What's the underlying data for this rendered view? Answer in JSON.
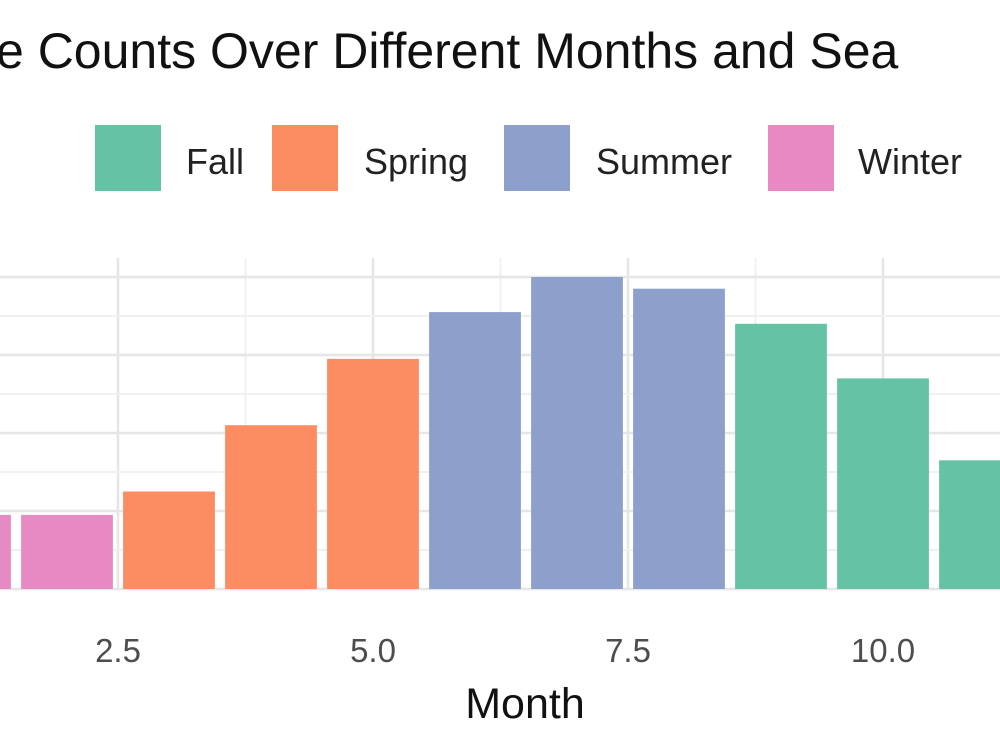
{
  "chart_data": {
    "type": "bar",
    "title": "e Counts Over Different Months and Sea",
    "xlabel": "Month",
    "ylabel": "",
    "xlim": [
      0.6,
      12.35
    ],
    "ylim": [
      0,
      8.55
    ],
    "grid": true,
    "legend_position": "top",
    "x_ticks": [
      2.5,
      5.0,
      7.5,
      10.0
    ],
    "x_tick_labels": [
      "2.5",
      "5.0",
      "7.5",
      "10.0"
    ],
    "legend": [
      {
        "name": "Fall",
        "color": "#66c2a5"
      },
      {
        "name": "Spring",
        "color": "#fc8d62"
      },
      {
        "name": "Summer",
        "color": "#8da0cb"
      },
      {
        "name": "Winter",
        "color": "#e78ac3"
      }
    ],
    "bars": [
      {
        "month": 1,
        "value": 1.9,
        "season": "Winter"
      },
      {
        "month": 2,
        "value": 1.9,
        "season": "Winter"
      },
      {
        "month": 3,
        "value": 2.5,
        "season": "Spring"
      },
      {
        "month": 4,
        "value": 4.2,
        "season": "Spring"
      },
      {
        "month": 5,
        "value": 5.9,
        "season": "Spring"
      },
      {
        "month": 6,
        "value": 7.1,
        "season": "Summer"
      },
      {
        "month": 7,
        "value": 8.0,
        "season": "Summer"
      },
      {
        "month": 8,
        "value": 7.7,
        "season": "Summer"
      },
      {
        "month": 9,
        "value": 6.8,
        "season": "Fall"
      },
      {
        "month": 10,
        "value": 5.4,
        "season": "Fall"
      },
      {
        "month": 11,
        "value": 3.3,
        "season": "Fall"
      }
    ]
  }
}
